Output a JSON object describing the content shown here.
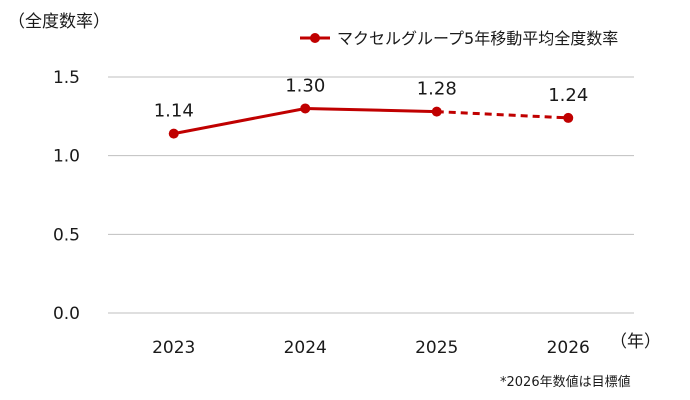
{
  "chart_data": {
    "type": "line",
    "ylabel": "（全度数率）",
    "xunit": "（年）",
    "categories": [
      "2023",
      "2024",
      "2025",
      "2026"
    ],
    "series": [
      {
        "name": "マクセルグループ5年移動平均全度数率",
        "values": [
          1.14,
          1.3,
          1.28,
          1.24
        ],
        "labels": [
          "1.14",
          "1.30",
          "1.28",
          "1.24"
        ],
        "dashed_from_index": 2,
        "color": "#c00000"
      }
    ],
    "ylim": [
      0,
      1.5
    ],
    "yticks": [
      "0.0",
      "0.5",
      "1.0",
      "1.5"
    ],
    "ytick_values": [
      0,
      0.5,
      1.0,
      1.5
    ],
    "grid": true,
    "legend_position": "top-right",
    "footnote": "*2026年数値は目標値"
  },
  "colors": {
    "series": "#c00000",
    "grid": "#bfbfbf",
    "text": "#1a1a1a"
  }
}
